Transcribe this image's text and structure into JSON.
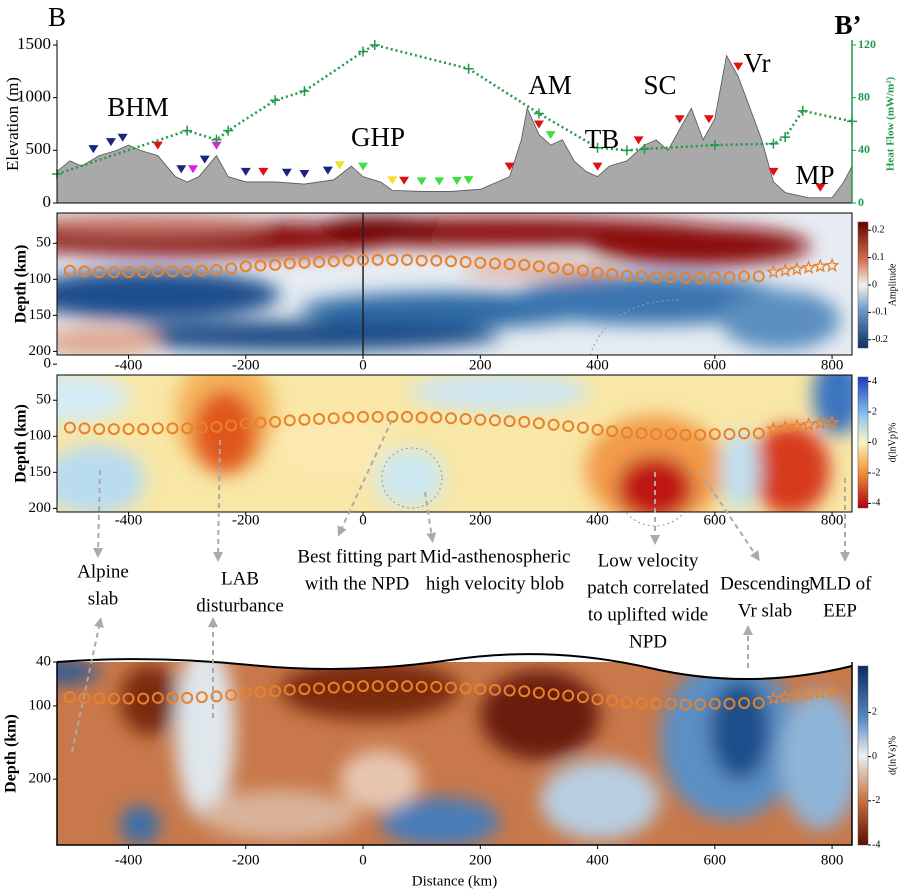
{
  "profile_labels": [
    "B",
    "B’",
    "BHM",
    "GHP",
    "AM",
    "TB",
    "SC",
    "Vr",
    "MP"
  ],
  "chart_data": [
    {
      "type": "area",
      "ylabel": "Elevation (m)",
      "y2label": "Heat Flow (mW/m²)",
      "xlim": [
        -522,
        834
      ],
      "ylim": [
        0,
        1500
      ],
      "yticks": [
        0,
        500,
        1000,
        1500
      ],
      "y2lim": [
        0,
        120
      ],
      "y2ticks": [
        0,
        40,
        80,
        120
      ],
      "series": [
        {
          "color": "#a9a9a9",
          "x": [
            -522,
            -500,
            -480,
            -450,
            -420,
            -400,
            -380,
            -350,
            -320,
            -300,
            -280,
            -250,
            -230,
            -200,
            -150,
            -100,
            -50,
            -20,
            0,
            30,
            50,
            100,
            150,
            200,
            250,
            270,
            280,
            300,
            320,
            340,
            360,
            380,
            400,
            420,
            450,
            480,
            500,
            520,
            540,
            560,
            580,
            600,
            620,
            640,
            660,
            680,
            700,
            720,
            760,
            800,
            820,
            834
          ],
          "values": [
            300,
            400,
            350,
            450,
            500,
            550,
            500,
            450,
            250,
            200,
            250,
            450,
            250,
            200,
            200,
            180,
            220,
            350,
            250,
            200,
            120,
            110,
            110,
            130,
            250,
            600,
            900,
            650,
            550,
            600,
            400,
            300,
            250,
            350,
            400,
            550,
            600,
            500,
            700,
            900,
            600,
            800,
            1400,
            1200,
            900,
            600,
            200,
            100,
            50,
            50,
            200,
            350
          ]
        },
        {
          "color": "#1e9a48",
          "axis": "y2",
          "x": [
            -522,
            -300,
            -250,
            -230,
            -150,
            -100,
            0,
            20,
            180,
            300,
            400,
            450,
            480,
            600,
            700,
            720,
            750,
            834
          ],
          "values": [
            22,
            55,
            48,
            55,
            78,
            85,
            115,
            120,
            102,
            68,
            42,
            40,
            41,
            44,
            45,
            50,
            70,
            62
          ]
        }
      ],
      "stations": {
        "x": [
          -460,
          -430,
          -410,
          -350,
          -310,
          -290,
          -270,
          -250,
          -200,
          -170,
          -130,
          -100,
          -60,
          -40,
          0,
          50,
          70,
          100,
          130,
          160,
          180,
          250,
          300,
          320,
          400,
          470,
          540,
          590,
          640,
          700,
          780
        ],
        "colors": [
          "#1a237e",
          "#1a237e",
          "#1a237e",
          "#e01010",
          "#1a237e",
          "#e020e0",
          "#1a237e",
          "#e020e0",
          "#1a237e",
          "#e01010",
          "#1a237e",
          "#1a237e",
          "#1a237e",
          "#f0e020",
          "#40e040",
          "#f0e020",
          "#e01010",
          "#40e040",
          "#40e040",
          "#40e040",
          "#40e040",
          "#e01010",
          "#e01010",
          "#40e040",
          "#e01010",
          "#e01010",
          "#e01010",
          "#e01010",
          "#e01010",
          "#e01010",
          "#e01010"
        ]
      }
    },
    {
      "type": "section",
      "ylabel": "Depth (km)",
      "xlim": [
        -522,
        834
      ],
      "xticks": [
        -400,
        -200,
        0,
        200,
        400,
        600,
        800
      ],
      "ylim": [
        8,
        205
      ],
      "yticks": [
        50,
        100,
        150,
        200
      ],
      "colorbar": {
        "label": "Amplitude",
        "lim": [
          -0.23,
          0.23
        ],
        "ticks": [
          0.2,
          0.1,
          0,
          -0.1,
          -0.2
        ]
      }
    },
    {
      "type": "section",
      "ylabel": "Depth (km)",
      "xlim": [
        -522,
        834
      ],
      "xticks": [
        -400,
        -200,
        0,
        200,
        400,
        600,
        800
      ],
      "ylim": [
        15,
        205
      ],
      "yticks": [
        0,
        50,
        100,
        150,
        200
      ],
      "colorbar": {
        "label": "d(lnVp)%",
        "lim": [
          -4.3,
          4.3
        ],
        "ticks": [
          4,
          2,
          0,
          -2,
          -4
        ]
      }
    },
    {
      "type": "section",
      "ylabel": "Depth (km)",
      "xlabel": "Distance (km)",
      "xlim": [
        -522,
        834
      ],
      "xticks": [
        -400,
        -200,
        0,
        200,
        400,
        600,
        800
      ],
      "ylim": [
        40,
        290
      ],
      "yticks": [
        40,
        100,
        200
      ],
      "colorbar": {
        "label": "d(lnVs)%",
        "lim": [
          -4,
          4.1
        ],
        "ticks": [
          2,
          0,
          -2,
          -4
        ]
      }
    }
  ],
  "npd": {
    "x": [
      -500,
      -475,
      -450,
      -425,
      -400,
      -375,
      -350,
      -325,
      -300,
      -275,
      -250,
      -225,
      -200,
      -175,
      -150,
      -125,
      -100,
      -75,
      -50,
      -25,
      0,
      25,
      50,
      75,
      100,
      125,
      150,
      175,
      200,
      225,
      250,
      275,
      300,
      325,
      350,
      375,
      400,
      425,
      450,
      475,
      500,
      525,
      550,
      575,
      600,
      625,
      650,
      675
    ],
    "depth": [
      88,
      89,
      90,
      90,
      90,
      90,
      89,
      89,
      89,
      88,
      87,
      85,
      82,
      81,
      80,
      78,
      77,
      76,
      75,
      74,
      73,
      73,
      73,
      73,
      74,
      74,
      75,
      76,
      77,
      78,
      79,
      80,
      82,
      84,
      86,
      88,
      91,
      93,
      95,
      96,
      97,
      97,
      98,
      98,
      97,
      97,
      96,
      96
    ],
    "color": "#e8822a"
  },
  "stars": {
    "x": [
      700,
      720,
      740,
      760,
      780,
      800
    ],
    "depth": [
      90,
      88,
      86,
      84,
      82,
      81
    ]
  },
  "annotations": [
    {
      "lines": [
        "Alpine",
        "slab"
      ]
    },
    {
      "lines": [
        "LAB",
        "disturbance"
      ]
    },
    {
      "lines": [
        "Best fitting part",
        "with the NPD"
      ]
    },
    {
      "lines": [
        "Mid-asthenospheric",
        "high velocity blob"
      ]
    },
    {
      "lines": [
        "Low velocity",
        "patch correlated",
        "to uplifted wide",
        "NPD"
      ]
    },
    {
      "lines": [
        "Descending",
        "Vr slab"
      ]
    },
    {
      "lines": [
        "MLD of",
        "EEP"
      ]
    }
  ]
}
